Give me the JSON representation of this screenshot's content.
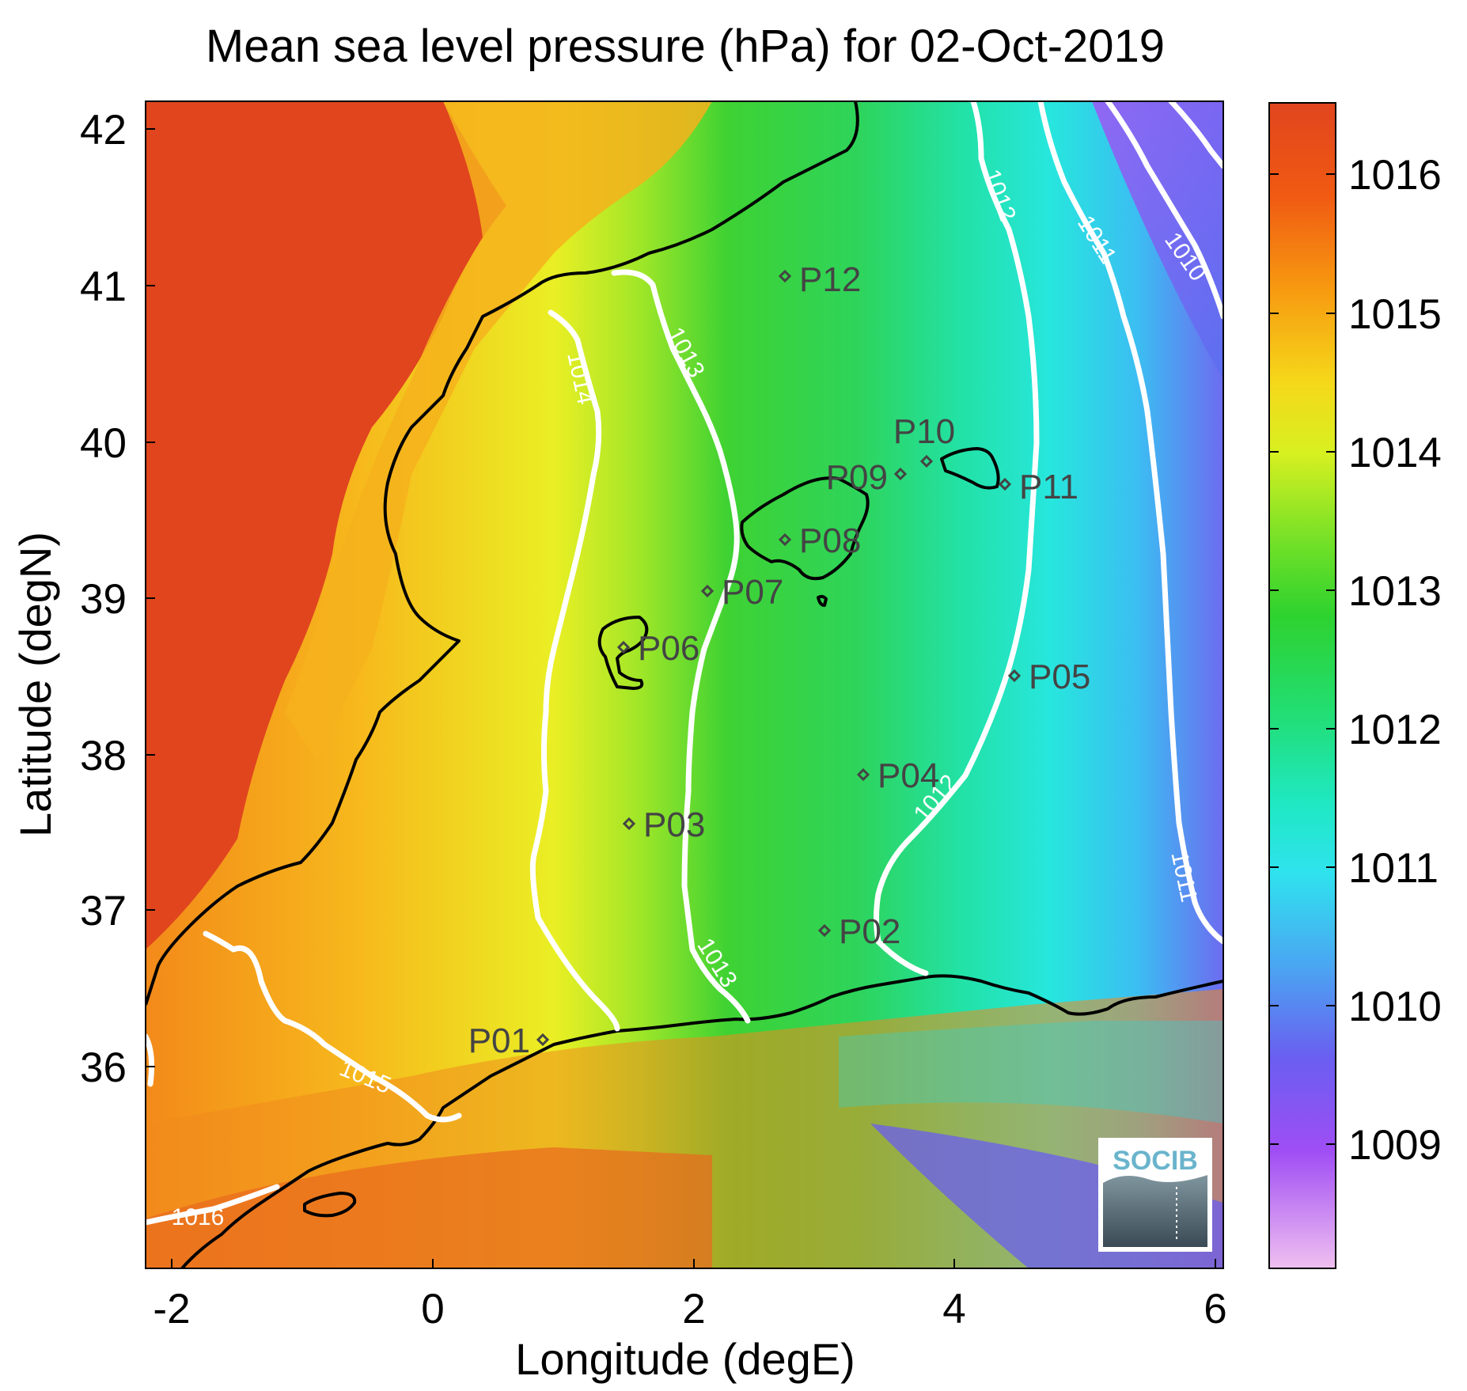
{
  "title": "Mean sea level pressure (hPa) for 02-Oct-2019",
  "xlabel": "Longitude (degE)",
  "ylabel": "Latitude (degN)",
  "xticks": [
    "-2",
    "0",
    "2",
    "4",
    "6"
  ],
  "yticks": [
    "42",
    "41",
    "40",
    "39",
    "38",
    "37",
    "36"
  ],
  "colorbar": {
    "ticks": [
      "1016",
      "1015",
      "1014",
      "1013",
      "1012",
      "1011",
      "1010",
      "1009"
    ],
    "colors": [
      "#e0451e",
      "#f96e0a",
      "#f5c01a",
      "#e8ef20",
      "#2fcf2f",
      "#22e59a",
      "#2fe3ee",
      "#4f8ff0",
      "#7d45ea",
      "#c064f2",
      "#f0b6f0"
    ]
  },
  "contour_labels": [
    "1016",
    "1015",
    "1014",
    "1013",
    "1013",
    "1012",
    "1012",
    "1011",
    "1011",
    "1010"
  ],
  "stations": [
    "P01",
    "P02",
    "P03",
    "P04",
    "P05",
    "P06",
    "P07",
    "P08",
    "P09",
    "P10",
    "P11",
    "P12"
  ],
  "logo": {
    "text": "SOCIB",
    "icon": "socib-logo-icon"
  }
}
